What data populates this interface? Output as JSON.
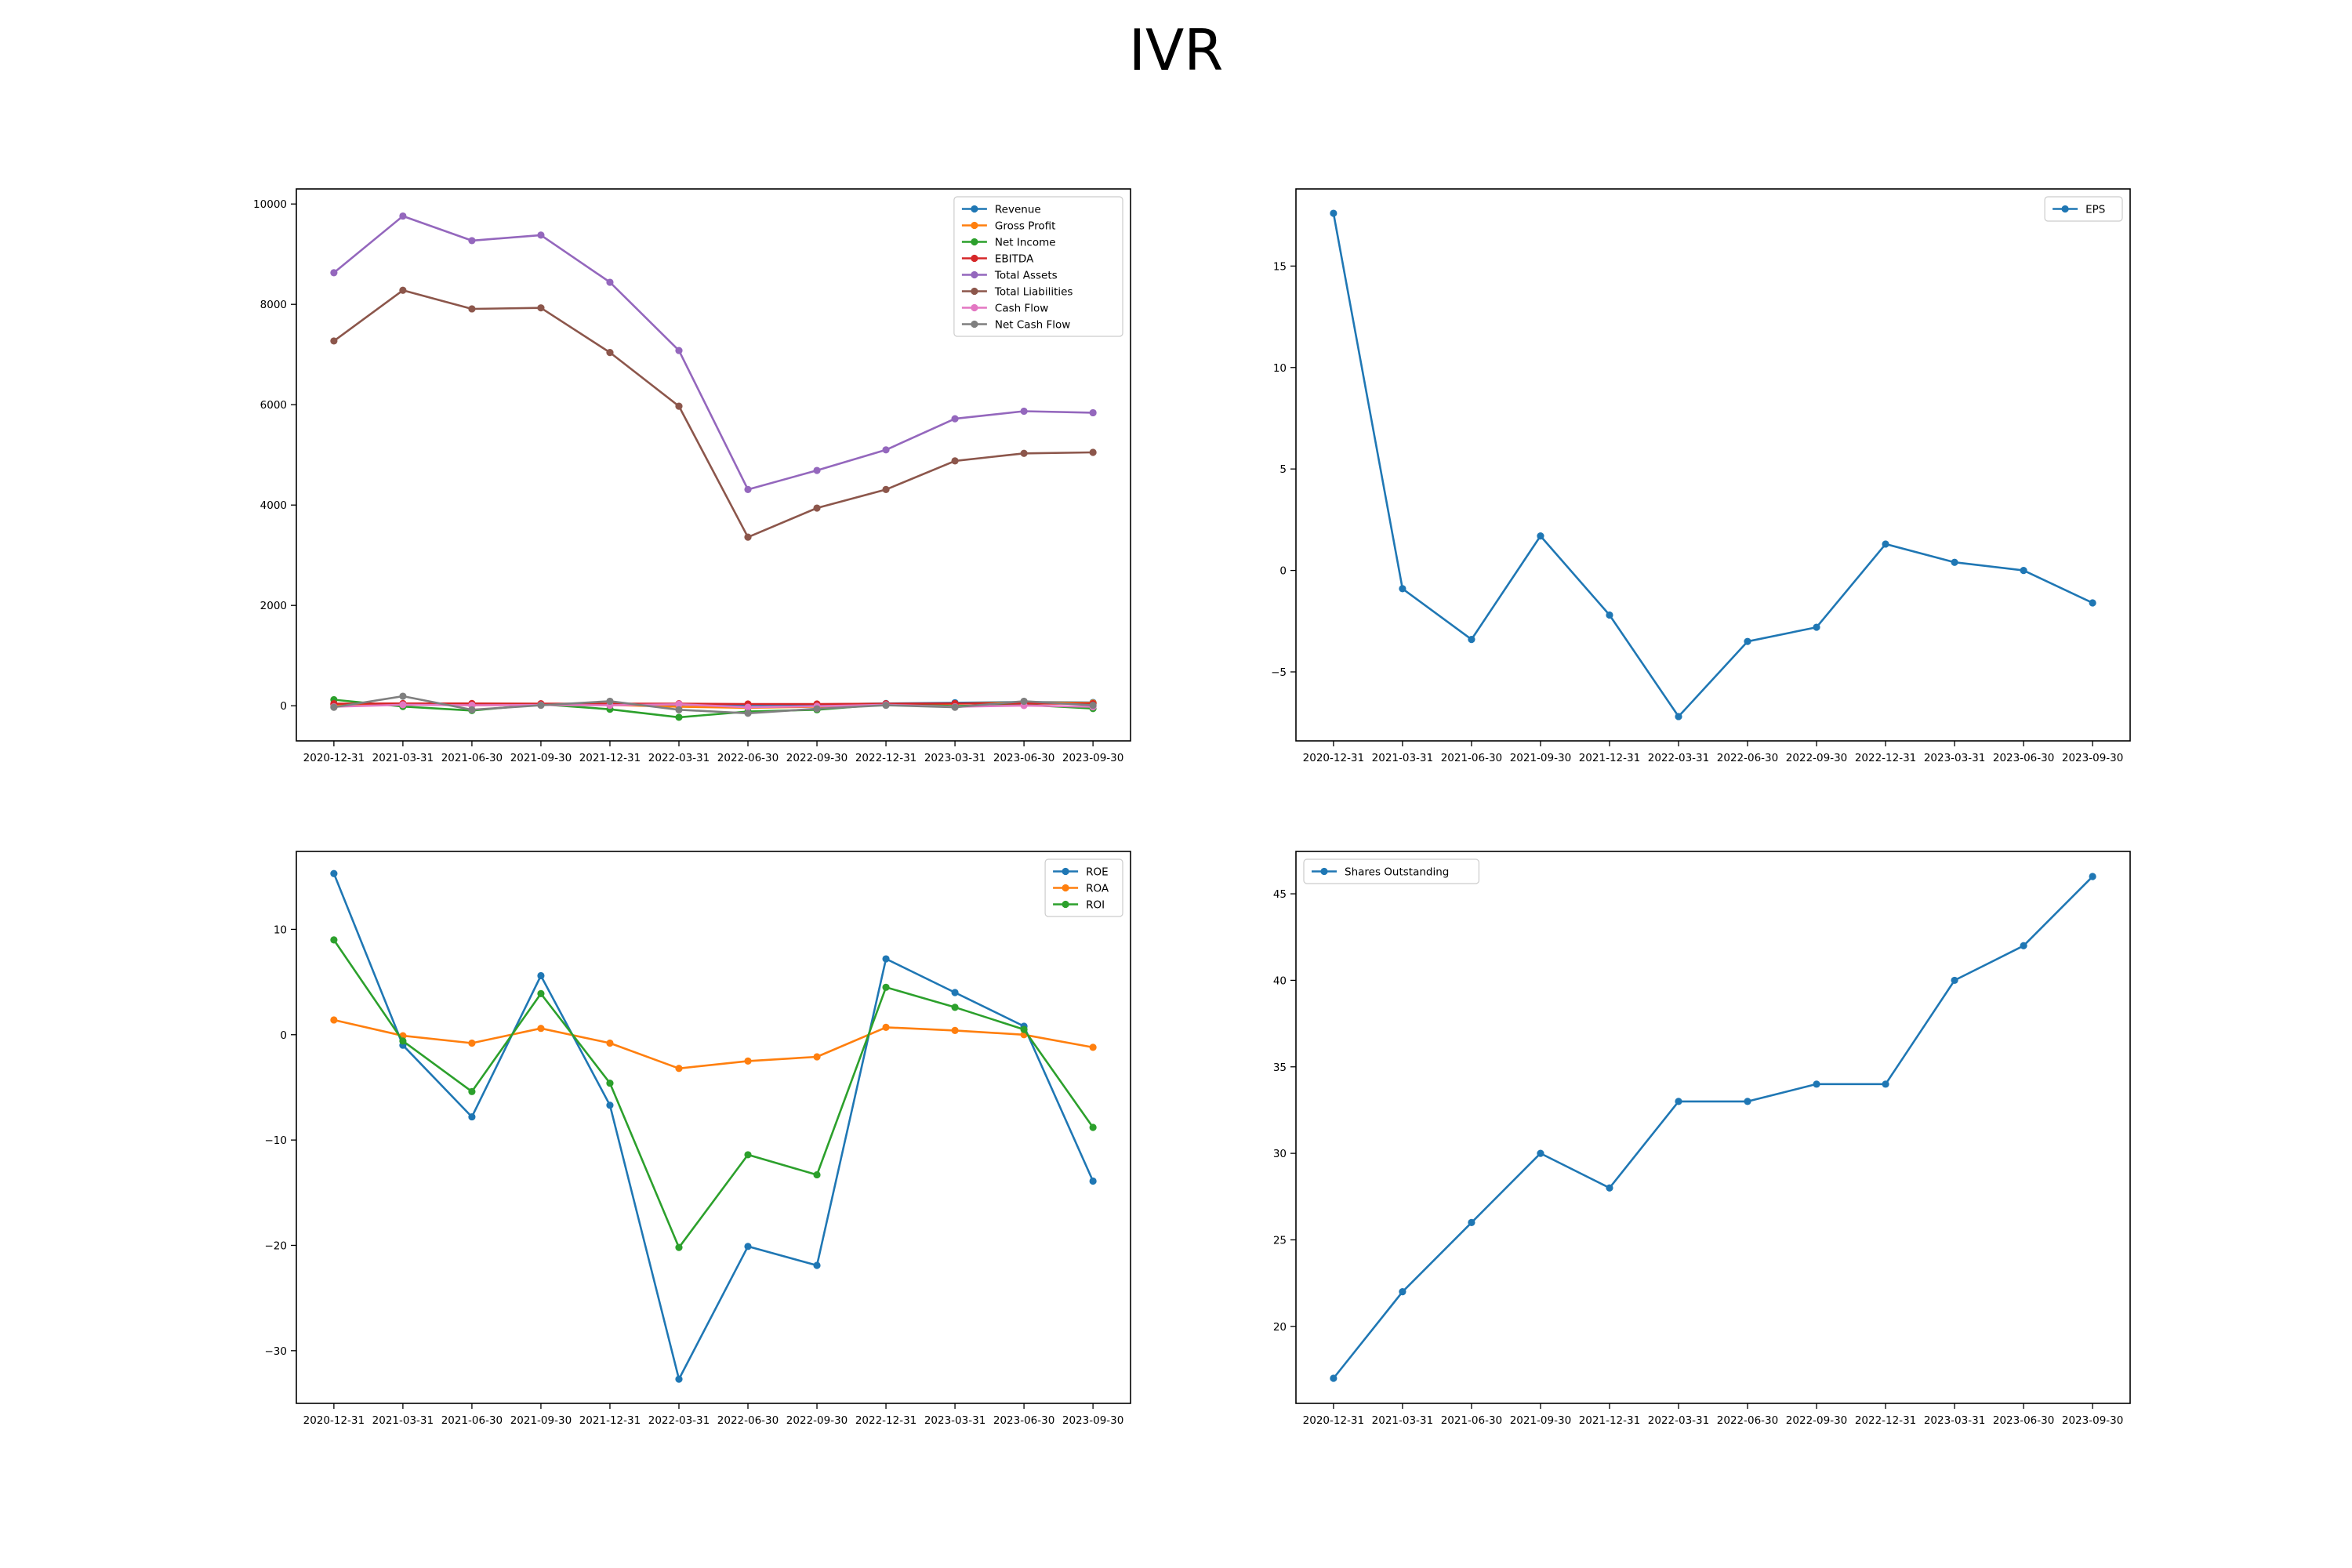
{
  "figure": {
    "title": "IVR"
  },
  "chart_data": [
    {
      "type": "line",
      "x": [
        "2020-12-31",
        "2021-03-31",
        "2021-06-30",
        "2021-09-30",
        "2021-12-31",
        "2022-03-31",
        "2022-06-30",
        "2022-09-30",
        "2022-12-31",
        "2023-03-31",
        "2023-06-30",
        "2023-09-30"
      ],
      "ylim": [
        -700,
        10300
      ],
      "yticks": [
        0,
        2000,
        4000,
        6000,
        8000,
        10000
      ],
      "legend": "top-right",
      "grid": false,
      "series": [
        {
          "name": "Revenue",
          "color": "#1f77b4",
          "values": [
            20,
            25,
            15,
            20,
            20,
            20,
            15,
            25,
            45,
            60,
            75,
            65
          ]
        },
        {
          "name": "Gross Profit",
          "color": "#ff7f0e",
          "values": [
            20,
            30,
            10,
            20,
            15,
            -20,
            -40,
            -20,
            30,
            40,
            70,
            55
          ]
        },
        {
          "name": "Net Income",
          "color": "#2ca02c",
          "values": [
            120,
            -15,
            -95,
            30,
            -70,
            -230,
            -115,
            -80,
            30,
            -5,
            20,
            -55
          ]
        },
        {
          "name": "EBITDA",
          "color": "#d62728",
          "values": [
            40,
            45,
            45,
            40,
            40,
            40,
            35,
            35,
            40,
            45,
            45,
            40
          ]
        },
        {
          "name": "Total Assets",
          "color": "#9467bd",
          "values": [
            8630,
            9760,
            9270,
            9380,
            8440,
            7080,
            4310,
            4690,
            5100,
            5720,
            5870,
            5840
          ]
        },
        {
          "name": "Total Liabilities",
          "color": "#8c564b",
          "values": [
            7270,
            8280,
            7910,
            7930,
            7040,
            5970,
            3360,
            3940,
            4310,
            4880,
            5030,
            5050
          ]
        },
        {
          "name": "Cash Flow",
          "color": "#e377c2",
          "values": [
            -20,
            20,
            10,
            15,
            10,
            30,
            -30,
            -10,
            20,
            -20,
            5,
            -20
          ]
        },
        {
          "name": "Net Cash Flow",
          "color": "#7f7f7f",
          "values": [
            -30,
            190,
            -80,
            10,
            90,
            -80,
            -150,
            -60,
            10,
            -30,
            90,
            10
          ]
        }
      ]
    },
    {
      "type": "line",
      "x": [
        "2020-12-31",
        "2021-03-31",
        "2021-06-30",
        "2021-09-30",
        "2021-12-31",
        "2022-03-31",
        "2022-06-30",
        "2022-09-30",
        "2022-12-31",
        "2023-03-31",
        "2023-06-30",
        "2023-09-30"
      ],
      "ylim": [
        -8.4,
        18.8
      ],
      "yticks": [
        -5,
        0,
        5,
        10,
        15
      ],
      "legend": "top-right",
      "grid": false,
      "series": [
        {
          "name": "EPS",
          "color": "#1f77b4",
          "values": [
            17.6,
            -0.9,
            -3.4,
            1.7,
            -2.2,
            -7.2,
            -3.5,
            -2.8,
            1.3,
            0.4,
            0.0,
            -1.6
          ]
        }
      ]
    },
    {
      "type": "line",
      "x": [
        "2020-12-31",
        "2021-03-31",
        "2021-06-30",
        "2021-09-30",
        "2021-12-31",
        "2022-03-31",
        "2022-06-30",
        "2022-09-30",
        "2022-12-31",
        "2023-03-31",
        "2023-06-30",
        "2023-09-30"
      ],
      "ylim": [
        -35,
        17.4
      ],
      "yticks": [
        -30,
        -20,
        -10,
        0,
        10
      ],
      "legend": "top-right",
      "grid": false,
      "series": [
        {
          "name": "ROE",
          "color": "#1f77b4",
          "values": [
            15.3,
            -1.0,
            -7.8,
            5.6,
            -6.7,
            -32.7,
            -20.1,
            -21.9,
            7.2,
            4.0,
            0.8,
            -13.9
          ]
        },
        {
          "name": "ROA",
          "color": "#ff7f0e",
          "values": [
            1.4,
            -0.1,
            -0.8,
            0.6,
            -0.8,
            -3.2,
            -2.5,
            -2.1,
            0.7,
            0.4,
            0.0,
            -1.2
          ]
        },
        {
          "name": "ROI",
          "color": "#2ca02c",
          "values": [
            9.0,
            -0.6,
            -5.4,
            3.9,
            -4.6,
            -20.2,
            -11.4,
            -13.3,
            4.5,
            2.6,
            0.5,
            -8.8
          ]
        }
      ]
    },
    {
      "type": "line",
      "x": [
        "2020-12-31",
        "2021-03-31",
        "2021-06-30",
        "2021-09-30",
        "2021-12-31",
        "2022-03-31",
        "2022-06-30",
        "2022-09-30",
        "2022-12-31",
        "2023-03-31",
        "2023-06-30",
        "2023-09-30"
      ],
      "ylim": [
        15.55,
        47.45
      ],
      "yticks": [
        20,
        25,
        30,
        35,
        40,
        45
      ],
      "legend": "top-left",
      "grid": false,
      "series": [
        {
          "name": "Shares Outstanding",
          "color": "#1f77b4",
          "values": [
            17,
            22,
            26,
            30,
            28,
            33,
            33,
            34,
            34,
            40,
            42,
            46
          ]
        }
      ]
    }
  ]
}
